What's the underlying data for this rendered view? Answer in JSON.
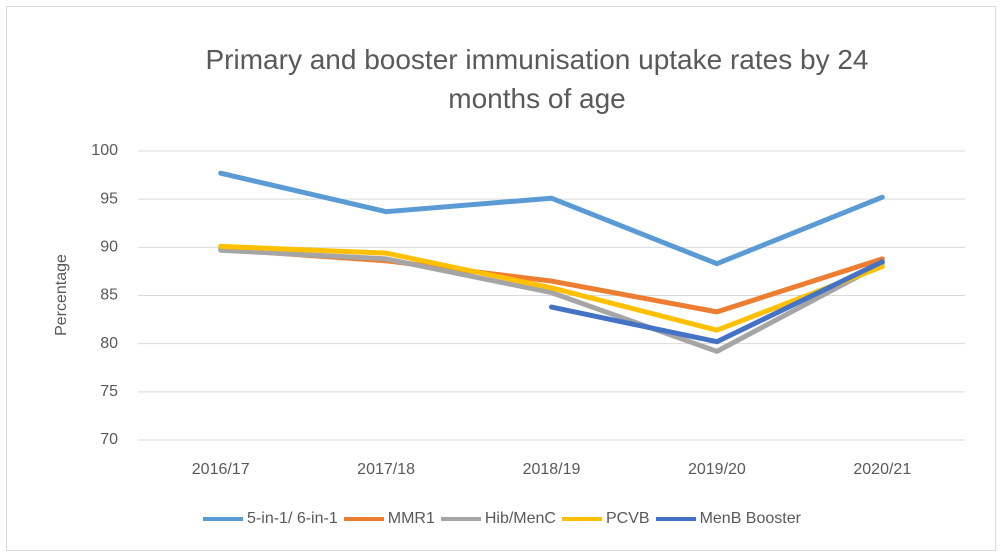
{
  "chart_data": {
    "type": "line",
    "title": "Primary and booster immunisation uptake rates by 24 months of age",
    "y_label": "Percentage",
    "categories": [
      "2016/17",
      "2017/18",
      "2018/19",
      "2019/20",
      "2020/21"
    ],
    "series": [
      {
        "name": "5-in-1/ 6-in-1",
        "color": "#5b9bd5",
        "values": [
          97.7,
          93.7,
          95.1,
          88.3,
          95.2
        ]
      },
      {
        "name": "MMR1",
        "color": "#ed7d31",
        "values": [
          89.8,
          88.6,
          86.5,
          83.3,
          88.8
        ]
      },
      {
        "name": "Hib/MenC",
        "color": "#a5a5a5",
        "values": [
          89.7,
          88.8,
          85.3,
          79.2,
          88.3
        ]
      },
      {
        "name": "PCVB",
        "color": "#ffc000",
        "values": [
          90.1,
          89.4,
          85.8,
          81.4,
          88.0
        ]
      },
      {
        "name": "MenB Booster",
        "color": "#4472c4",
        "values": [
          null,
          null,
          83.8,
          80.2,
          88.5
        ]
      }
    ],
    "ylim": [
      70,
      100
    ],
    "yticks": [
      70,
      75,
      80,
      85,
      90,
      95,
      100
    ],
    "grid": true
  }
}
